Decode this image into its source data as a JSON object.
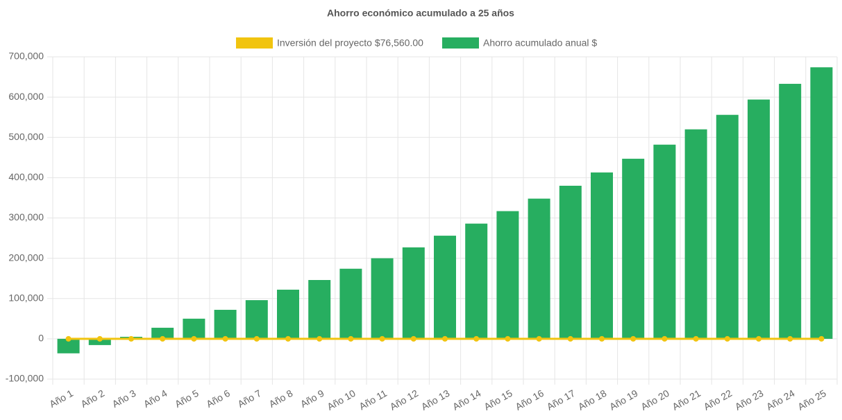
{
  "chart_data": {
    "type": "bar",
    "title": "Ahorro económico acumulado a 25 años",
    "categories": [
      "Año 1",
      "Año 2",
      "Año 3",
      "Año 4",
      "Año 5",
      "Año 6",
      "Año 7",
      "Año 8",
      "Año 9",
      "Año 10",
      "Año 11",
      "Año 12",
      "Año 13",
      "Año 14",
      "Año 15",
      "Año 16",
      "Año 17",
      "Año 18",
      "Año 19",
      "Año 20",
      "Año 21",
      "Año 22",
      "Año 23",
      "Año 24",
      "Año 25"
    ],
    "series": [
      {
        "name": "Inversión del proyecto $76,560.00",
        "type": "line",
        "color": "#f1c40f",
        "values": [
          0,
          0,
          0,
          0,
          0,
          0,
          0,
          0,
          0,
          0,
          0,
          0,
          0,
          0,
          0,
          0,
          0,
          0,
          0,
          0,
          0,
          0,
          0,
          0,
          0
        ]
      },
      {
        "name": "Ahorro acumulado anual $",
        "type": "bar",
        "color": "#27ae60",
        "values": [
          -36000,
          -15500,
          5000,
          27500,
          50000,
          72000,
          96000,
          122000,
          146000,
          174000,
          200000,
          227000,
          256000,
          286000,
          317000,
          348000,
          380000,
          413000,
          447000,
          482000,
          520000,
          556000,
          594000,
          633000,
          674000
        ]
      }
    ],
    "ylim": [
      -100000,
      700000
    ],
    "yticks": [
      {
        "value": -100000,
        "label": "-100,000"
      },
      0,
      {
        "value": 100000,
        "label": "100,000"
      },
      {
        "value": 200000,
        "label": "200,000"
      },
      {
        "value": 300000,
        "label": "300,000"
      },
      {
        "value": 400000,
        "label": "400,000"
      },
      {
        "value": 500000,
        "label": "500,000"
      },
      {
        "value": 600000,
        "label": "600,000"
      },
      {
        "value": 700000,
        "label": "700,000"
      }
    ],
    "grid": true
  }
}
